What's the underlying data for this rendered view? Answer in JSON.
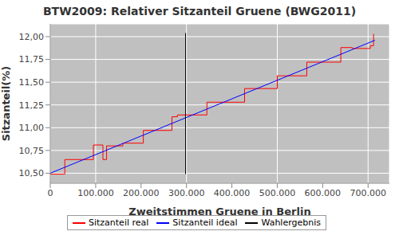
{
  "chart_data": {
    "type": "line",
    "title": "BTW2009: Relativer Sitzanteil Gruene (BWG2011)",
    "x_label": "Zweitstimmen Gruene in Berlin",
    "y_label": "Sitzanteil(%)",
    "xlim": [
      0,
      747000
    ],
    "ylim": [
      10.39,
      12.14
    ],
    "xticks": [
      0,
      {
        "value": 100000,
        "label": "100.000"
      },
      {
        "value": 200000,
        "label": "200.000"
      },
      {
        "value": 300000,
        "label": "300.000"
      },
      {
        "value": 400000,
        "label": "400.000"
      },
      {
        "value": 500000,
        "label": "500.000"
      },
      {
        "value": 600000,
        "label": "600.000"
      },
      {
        "value": 700000,
        "label": "700.000"
      }
    ],
    "yticks": [
      {
        "value": 10.5,
        "label": "10,50"
      },
      {
        "value": 10.75,
        "label": "10,75"
      },
      {
        "value": 11,
        "label": "11,00"
      },
      {
        "value": 11.25,
        "label": "11,25"
      },
      {
        "value": 11.5,
        "label": "11,50"
      },
      {
        "value": 11.75,
        "label": "11,75"
      },
      {
        "value": 12,
        "label": "12,00"
      }
    ],
    "grid": true,
    "legend": "bottom",
    "series": [
      {
        "name": "Sitzanteil real",
        "color": "#ff0000",
        "type": "step",
        "x": [
          0,
          32000,
          95000,
          116000,
          124000,
          160000,
          205000,
          268000,
          280000,
          345000,
          428000,
          500000,
          565000,
          640000,
          665000,
          705000,
          712000
        ],
        "values": [
          10.49,
          10.65,
          10.81,
          10.65,
          10.8,
          10.83,
          10.97,
          11.12,
          11.14,
          11.28,
          11.43,
          11.57,
          11.72,
          11.88,
          11.87,
          11.9,
          12.03
        ]
      },
      {
        "name": "Sitzanteil ideal",
        "color": "#0000ff",
        "type": "line",
        "x": [
          0,
          715000
        ],
        "values": [
          10.5,
          11.96
        ]
      },
      {
        "name": "Wahlergebnis",
        "color": "#000000",
        "type": "line",
        "x": [
          298000,
          298000
        ],
        "values": [
          10.49,
          12.04
        ]
      }
    ]
  }
}
